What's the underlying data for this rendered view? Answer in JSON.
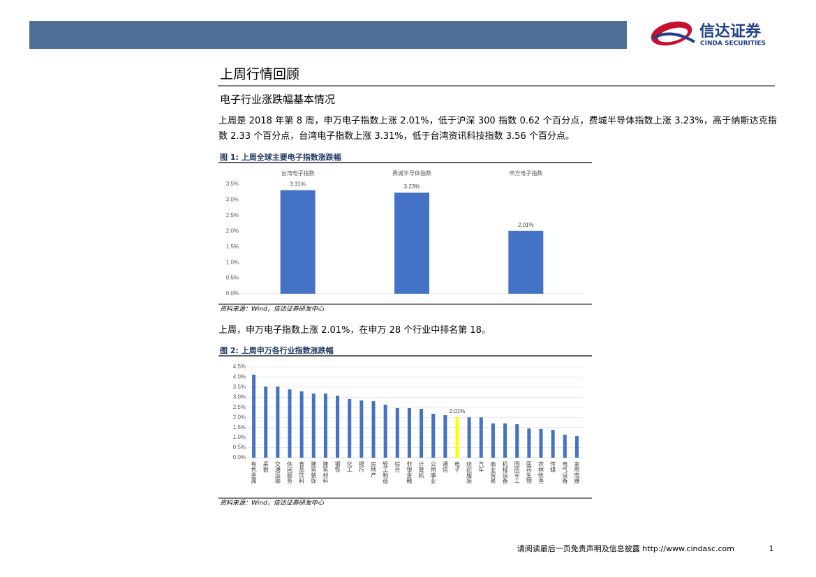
{
  "header": {
    "logo_cn": "信达证券",
    "logo_en": "CINDA SECURITIES"
  },
  "section": {
    "title": "上周行情回顾",
    "subtitle": "电子行业涨跌幅基本情况"
  },
  "paragraphs": [
    "上周是 2018 年第 8 周，申万电子指数上涨 2.01%，低于沪深 300 指数 0.62 个百分点，费城半导体指数上涨 3.23%，高于纳斯达克指数 2.33 个百分点，台湾电子指数上涨 3.31%，低于台湾资讯科技指数 3.56 个百分点。",
    "上周，申万电子指数上涨 2.01%，在申万 28 个行业中排名第 18。"
  ],
  "chart_data": [
    {
      "type": "bar",
      "title": "图 1: 上周全球主要电子指数涨跌幅",
      "source": "资料来源：Wind，信达证券研发中心",
      "categories": [
        "台湾电子指数",
        "费城半导体指数",
        "申万电子指数"
      ],
      "category_position": "top",
      "values": [
        3.31,
        3.23,
        2.01
      ],
      "value_labels": [
        "3.31%",
        "3.23%",
        "2.01%"
      ],
      "colors": [
        "#4472c4",
        "#4472c4",
        "#4472c4"
      ],
      "grid": false,
      "ylim": [
        0,
        3.5
      ],
      "yticks": [
        {
          "value": 0,
          "label": "0.0%"
        },
        {
          "value": 0.5,
          "label": "0.5%"
        },
        {
          "value": 1,
          "label": "1.0%"
        },
        {
          "value": 1.5,
          "label": "1.5%"
        },
        {
          "value": 2,
          "label": "2.0%"
        },
        {
          "value": 2.5,
          "label": "2.5%"
        },
        {
          "value": 3,
          "label": "3.0%"
        },
        {
          "value": 3.5,
          "label": "3.5%"
        }
      ]
    },
    {
      "type": "bar",
      "title": "图 2: 上周申万各行业指数涨跌幅",
      "source": "资料来源：Wind，信达证券研发中心",
      "categories": [
        "有色金属",
        "采掘",
        "交通运输",
        "休闲服务",
        "食品饮料",
        "建筑装饰",
        "建筑材料",
        "钢铁",
        "化工",
        "银行",
        "房地产",
        "轻工制造",
        "综合",
        "非银金融",
        "计算机",
        "公用事业",
        "通信",
        "电子",
        "纺织服装",
        "汽车",
        "商业贸易",
        "机械设备",
        "国防军工",
        "医药生物",
        "农林牧渔",
        "传媒",
        "电气设备",
        "家用电器"
      ],
      "category_position": "bottom",
      "values": [
        4.12,
        3.53,
        3.53,
        3.39,
        3.29,
        3.18,
        3.18,
        3.08,
        2.91,
        2.84,
        2.8,
        2.63,
        2.46,
        2.46,
        2.42,
        2.18,
        2.11,
        2.01,
        2.0,
        2.0,
        1.7,
        1.7,
        1.66,
        1.45,
        1.42,
        1.38,
        1.14,
        1.07
      ],
      "value_labels": [
        null,
        null,
        null,
        null,
        null,
        null,
        null,
        null,
        null,
        null,
        null,
        null,
        null,
        null,
        null,
        null,
        null,
        "2.01%",
        null,
        null,
        null,
        null,
        null,
        null,
        null,
        null,
        null,
        null
      ],
      "colors": [
        "#4472c4",
        "#4472c4",
        "#4472c4",
        "#4472c4",
        "#4472c4",
        "#4472c4",
        "#4472c4",
        "#4472c4",
        "#4472c4",
        "#4472c4",
        "#4472c4",
        "#4472c4",
        "#4472c4",
        "#4472c4",
        "#4472c4",
        "#4472c4",
        "#4472c4",
        "#ffff00",
        "#4472c4",
        "#4472c4",
        "#4472c4",
        "#4472c4",
        "#4472c4",
        "#4472c4",
        "#4472c4",
        "#4472c4",
        "#4472c4",
        "#4472c4"
      ],
      "grid": true,
      "ylim": [
        0,
        4.5
      ],
      "yticks": [
        {
          "value": 0,
          "label": "0.0%"
        },
        {
          "value": 0.5,
          "label": "0.5%"
        },
        {
          "value": 1,
          "label": "1.0%"
        },
        {
          "value": 1.5,
          "label": "1.5%"
        },
        {
          "value": 2,
          "label": "2.0%"
        },
        {
          "value": 2.5,
          "label": "2.5%"
        },
        {
          "value": 3,
          "label": "3.0%"
        },
        {
          "value": 3.5,
          "label": "3.5%"
        },
        {
          "value": 4,
          "label": "4.0%"
        },
        {
          "value": 4.5,
          "label": "4.5%"
        }
      ]
    }
  ],
  "footer": {
    "disclaimer": "请阅读最后一页免责声明及信息披露",
    "url": "http://www.cindasc.com",
    "page": "1"
  }
}
